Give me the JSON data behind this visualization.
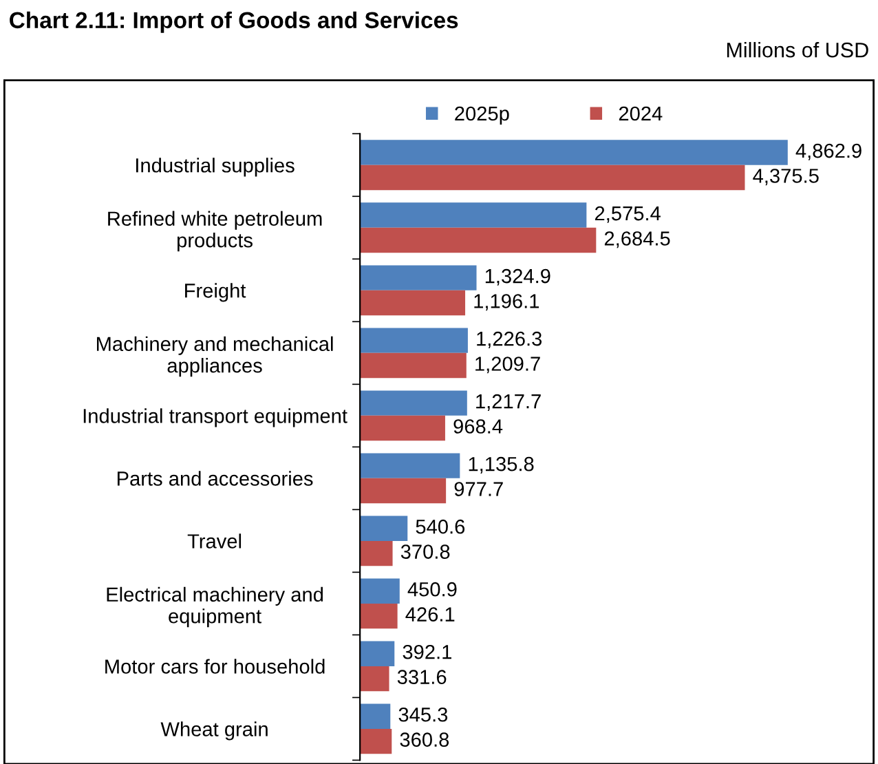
{
  "chart_data": {
    "type": "bar",
    "orientation": "horizontal",
    "title": "Chart 2.11: Import of Goods and Services",
    "subtitle": "Millions of USD",
    "categories": [
      "Industrial supplies",
      "Refined white petroleum\nproducts",
      "Freight",
      "Machinery and mechanical\nappliances",
      "Industrial transport equipment",
      "Parts and accessories",
      "Travel",
      "Electrical machinery and\nequipment",
      "Motor cars for household",
      "Wheat grain"
    ],
    "series": [
      {
        "name": "2025p",
        "color": "#4f81bd",
        "values": [
          4862.9,
          2575.4,
          1324.9,
          1226.3,
          1217.7,
          1135.8,
          540.6,
          450.9,
          392.1,
          345.3
        ],
        "value_labels": [
          "4,862.9",
          "2,575.4",
          "1,324.9",
          "1,226.3",
          "1,217.7",
          "1,135.8",
          "540.6",
          "450.9",
          "392.1",
          "345.3"
        ]
      },
      {
        "name": "2024",
        "color": "#c0504d",
        "values": [
          4375.5,
          2684.5,
          1196.1,
          1209.7,
          968.4,
          977.7,
          370.8,
          426.1,
          331.6,
          360.8
        ],
        "value_labels": [
          "4,375.5",
          "2,684.5",
          "1,196.1",
          "1,209.7",
          "968.4",
          "977.7",
          "370.8",
          "426.1",
          "331.6",
          "360.8"
        ]
      }
    ],
    "legend": "top",
    "grid": false
  }
}
